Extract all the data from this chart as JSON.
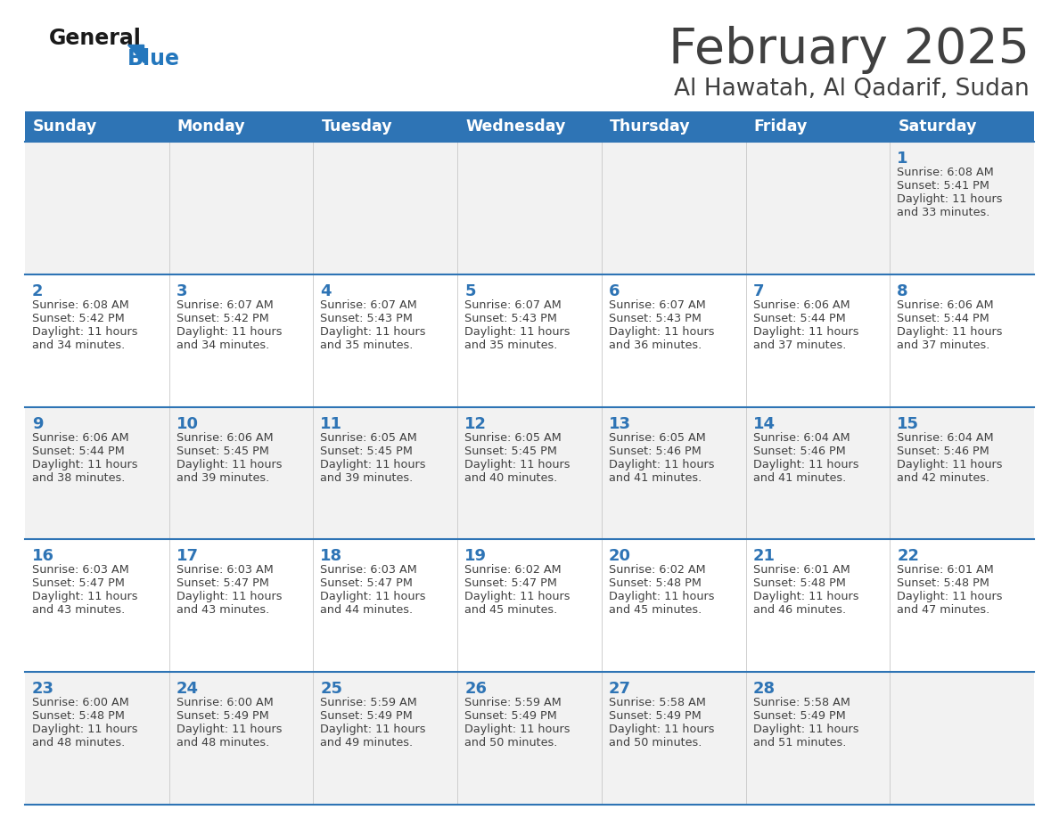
{
  "title": "February 2025",
  "subtitle": "Al Hawatah, Al Qadarif, Sudan",
  "header_color": "#2E74B5",
  "header_text_color": "#FFFFFF",
  "day_names": [
    "Sunday",
    "Monday",
    "Tuesday",
    "Wednesday",
    "Thursday",
    "Friday",
    "Saturday"
  ],
  "background_color": "#FFFFFF",
  "cell_bg_light": "#F2F2F2",
  "cell_bg_white": "#FFFFFF",
  "separator_color": "#2E74B5",
  "day_number_color": "#2E74B5",
  "text_color": "#404040",
  "logo_general_color": "#1A1A1A",
  "logo_blue_color": "#2477BD",
  "calendar_data": [
    [
      null,
      null,
      null,
      null,
      null,
      null,
      {
        "day": 1,
        "sunrise": "6:08 AM",
        "sunset": "5:41 PM",
        "daylight": "11 hours and 33 minutes."
      }
    ],
    [
      {
        "day": 2,
        "sunrise": "6:08 AM",
        "sunset": "5:42 PM",
        "daylight": "11 hours and 34 minutes."
      },
      {
        "day": 3,
        "sunrise": "6:07 AM",
        "sunset": "5:42 PM",
        "daylight": "11 hours and 34 minutes."
      },
      {
        "day": 4,
        "sunrise": "6:07 AM",
        "sunset": "5:43 PM",
        "daylight": "11 hours and 35 minutes."
      },
      {
        "day": 5,
        "sunrise": "6:07 AM",
        "sunset": "5:43 PM",
        "daylight": "11 hours and 35 minutes."
      },
      {
        "day": 6,
        "sunrise": "6:07 AM",
        "sunset": "5:43 PM",
        "daylight": "11 hours and 36 minutes."
      },
      {
        "day": 7,
        "sunrise": "6:06 AM",
        "sunset": "5:44 PM",
        "daylight": "11 hours and 37 minutes."
      },
      {
        "day": 8,
        "sunrise": "6:06 AM",
        "sunset": "5:44 PM",
        "daylight": "11 hours and 37 minutes."
      }
    ],
    [
      {
        "day": 9,
        "sunrise": "6:06 AM",
        "sunset": "5:44 PM",
        "daylight": "11 hours and 38 minutes."
      },
      {
        "day": 10,
        "sunrise": "6:06 AM",
        "sunset": "5:45 PM",
        "daylight": "11 hours and 39 minutes."
      },
      {
        "day": 11,
        "sunrise": "6:05 AM",
        "sunset": "5:45 PM",
        "daylight": "11 hours and 39 minutes."
      },
      {
        "day": 12,
        "sunrise": "6:05 AM",
        "sunset": "5:45 PM",
        "daylight": "11 hours and 40 minutes."
      },
      {
        "day": 13,
        "sunrise": "6:05 AM",
        "sunset": "5:46 PM",
        "daylight": "11 hours and 41 minutes."
      },
      {
        "day": 14,
        "sunrise": "6:04 AM",
        "sunset": "5:46 PM",
        "daylight": "11 hours and 41 minutes."
      },
      {
        "day": 15,
        "sunrise": "6:04 AM",
        "sunset": "5:46 PM",
        "daylight": "11 hours and 42 minutes."
      }
    ],
    [
      {
        "day": 16,
        "sunrise": "6:03 AM",
        "sunset": "5:47 PM",
        "daylight": "11 hours and 43 minutes."
      },
      {
        "day": 17,
        "sunrise": "6:03 AM",
        "sunset": "5:47 PM",
        "daylight": "11 hours and 43 minutes."
      },
      {
        "day": 18,
        "sunrise": "6:03 AM",
        "sunset": "5:47 PM",
        "daylight": "11 hours and 44 minutes."
      },
      {
        "day": 19,
        "sunrise": "6:02 AM",
        "sunset": "5:47 PM",
        "daylight": "11 hours and 45 minutes."
      },
      {
        "day": 20,
        "sunrise": "6:02 AM",
        "sunset": "5:48 PM",
        "daylight": "11 hours and 45 minutes."
      },
      {
        "day": 21,
        "sunrise": "6:01 AM",
        "sunset": "5:48 PM",
        "daylight": "11 hours and 46 minutes."
      },
      {
        "day": 22,
        "sunrise": "6:01 AM",
        "sunset": "5:48 PM",
        "daylight": "11 hours and 47 minutes."
      }
    ],
    [
      {
        "day": 23,
        "sunrise": "6:00 AM",
        "sunset": "5:48 PM",
        "daylight": "11 hours and 48 minutes."
      },
      {
        "day": 24,
        "sunrise": "6:00 AM",
        "sunset": "5:49 PM",
        "daylight": "11 hours and 48 minutes."
      },
      {
        "day": 25,
        "sunrise": "5:59 AM",
        "sunset": "5:49 PM",
        "daylight": "11 hours and 49 minutes."
      },
      {
        "day": 26,
        "sunrise": "5:59 AM",
        "sunset": "5:49 PM",
        "daylight": "11 hours and 50 minutes."
      },
      {
        "day": 27,
        "sunrise": "5:58 AM",
        "sunset": "5:49 PM",
        "daylight": "11 hours and 50 minutes."
      },
      {
        "day": 28,
        "sunrise": "5:58 AM",
        "sunset": "5:49 PM",
        "daylight": "11 hours and 51 minutes."
      },
      null
    ]
  ]
}
